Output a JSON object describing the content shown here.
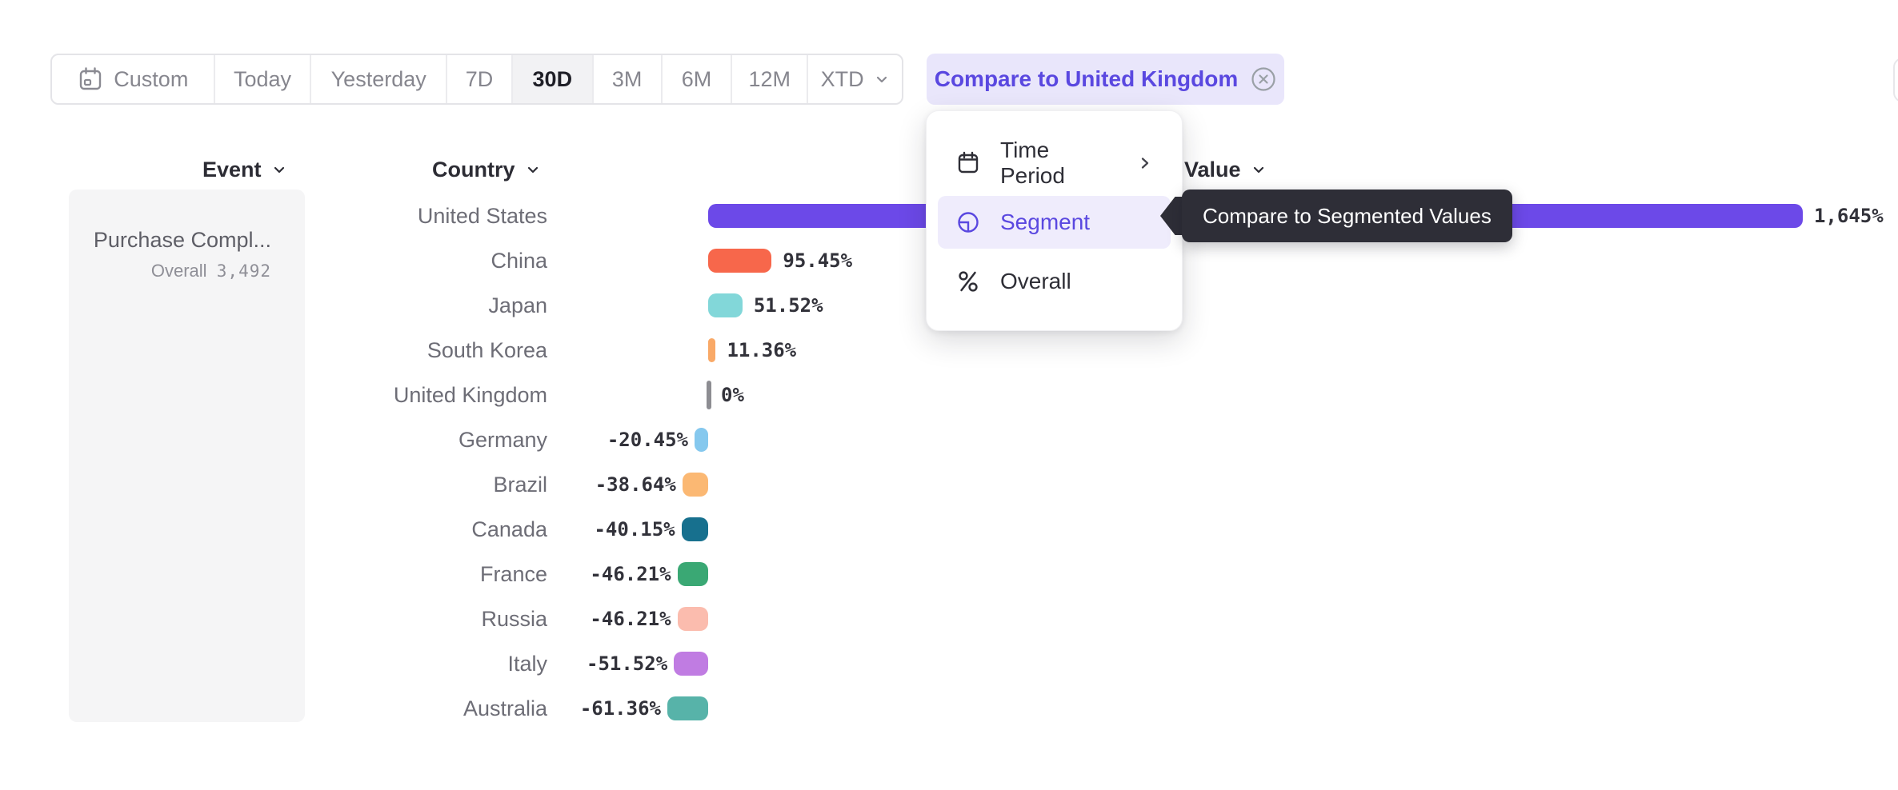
{
  "colors": {
    "accent": "#5a48e0",
    "compare_chip_bg": "#e9e6fb",
    "toolbar_selected_bg": "#f2f2f4",
    "header_text": "#2c2c34",
    "country_label_text": "#6d6d76",
    "value_text": "#32323a",
    "event_card_bg": "#f5f5f6",
    "tooltip_bg": "#2e2e37",
    "axis_tick": "#8d8d92"
  },
  "toolbar": {
    "items": [
      {
        "label": "Custom",
        "icon": "calendar-icon",
        "selected": false
      },
      {
        "label": "Today",
        "selected": false
      },
      {
        "label": "Yesterday",
        "selected": false
      },
      {
        "label": "7D",
        "selected": false
      },
      {
        "label": "30D",
        "selected": true
      },
      {
        "label": "3M",
        "selected": false
      },
      {
        "label": "6M",
        "selected": false
      },
      {
        "label": "12M",
        "selected": false
      },
      {
        "label": "XTD",
        "selected": false,
        "has_dropdown": true
      }
    ],
    "compare_chip_label": "Compare to United Kingdom"
  },
  "columns": {
    "event": "Event",
    "country": "Country",
    "value": "Value"
  },
  "event_card": {
    "title": "Purchase Compl...",
    "metric_label": "Overall",
    "metric_value": "3,492"
  },
  "menu": {
    "items": [
      {
        "label": "Time Period",
        "icon": "calendar-icon",
        "has_submenu": true,
        "selected": false
      },
      {
        "label": "Segment",
        "icon": "segment-icon",
        "selected": true
      },
      {
        "label": "Overall",
        "icon": "percent-icon",
        "selected": false
      }
    ]
  },
  "tooltip": {
    "text": "Compare to Segmented Values"
  },
  "chart_data": {
    "type": "bar",
    "orientation": "horizontal",
    "unit": "percent change vs United Kingdom",
    "categories": [
      "United States",
      "China",
      "Japan",
      "South Korea",
      "United Kingdom",
      "Germany",
      "Brazil",
      "Canada",
      "France",
      "Russia",
      "Italy",
      "Australia"
    ],
    "values": [
      1645,
      95.45,
      51.52,
      11.36,
      0,
      -20.45,
      -38.64,
      -40.15,
      -46.21,
      -46.21,
      -51.52,
      -61.36
    ],
    "labels": [
      "1,645%",
      "95.45%",
      "51.52%",
      "11.36%",
      "0%",
      "-20.45%",
      "-38.64%",
      "-40.15%",
      "-46.21%",
      "-46.21%",
      "-51.52%",
      "-61.36%"
    ],
    "colors": [
      "#6c49e8",
      "#f7674b",
      "#82d7d9",
      "#f9a967",
      "#8d8d92",
      "#85c8ee",
      "#fbb873",
      "#17708e",
      "#3aa874",
      "#fbbcae",
      "#c07ce2",
      "#57b3a9"
    ],
    "patterned": [
      false,
      false,
      false,
      false,
      false,
      true,
      true,
      false,
      false,
      false,
      false,
      false
    ],
    "baseline_category": "United Kingdom",
    "xlim": [
      -61.36,
      1645
    ],
    "grid": false,
    "legend": false
  }
}
